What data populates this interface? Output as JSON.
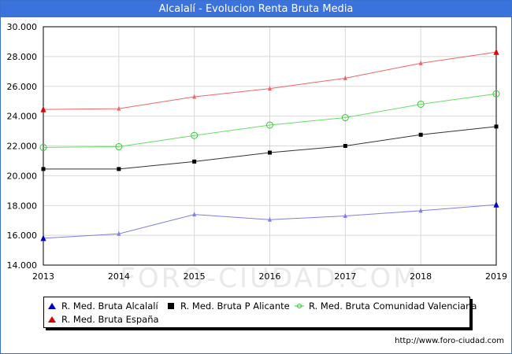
{
  "title": "Alcalalí - Evolucion Renta Bruta Media",
  "watermark": "FORO-CIUDAD.COM",
  "credit": "http://www.foro-ciudad.com",
  "chart_data": {
    "type": "line",
    "x": [
      2013,
      2014,
      2015,
      2016,
      2017,
      2018,
      2019
    ],
    "xlim": [
      2013,
      2019
    ],
    "ylim": [
      14000,
      30000
    ],
    "yticks": [
      14000,
      16000,
      18000,
      20000,
      22000,
      24000,
      26000,
      28000,
      30000
    ],
    "ytick_labels": [
      "14.000",
      "16.000",
      "18.000",
      "20.000",
      "22.000",
      "24.000",
      "26.000",
      "28.000",
      "30.000"
    ],
    "grid": true,
    "legend_position": "bottom",
    "series": [
      {
        "name": "R. Med. Bruta Alcalalí",
        "color": "#0000cc",
        "line_color": "#7f7fe6",
        "marker": "triangle",
        "values": [
          15800,
          16100,
          17400,
          17050,
          17300,
          17650,
          18050
        ]
      },
      {
        "name": "R. Med. Bruta P Alicante",
        "color": "#000000",
        "line_color": "#333333",
        "marker": "square",
        "values": [
          20450,
          20450,
          20950,
          21550,
          22000,
          22750,
          23300
        ]
      },
      {
        "name": "R. Med. Bruta Comunidad Valenciana",
        "color": "#33cc33",
        "line_color": "#66dd66",
        "marker": "circle",
        "values": [
          21900,
          21950,
          22700,
          23400,
          23900,
          24800,
          25500
        ]
      },
      {
        "name": "R. Med. Bruta España",
        "color": "#dd0000",
        "line_color": "#ee6666",
        "marker": "triangle",
        "values": [
          24450,
          24500,
          25300,
          25850,
          26550,
          27550,
          28300
        ]
      }
    ]
  }
}
